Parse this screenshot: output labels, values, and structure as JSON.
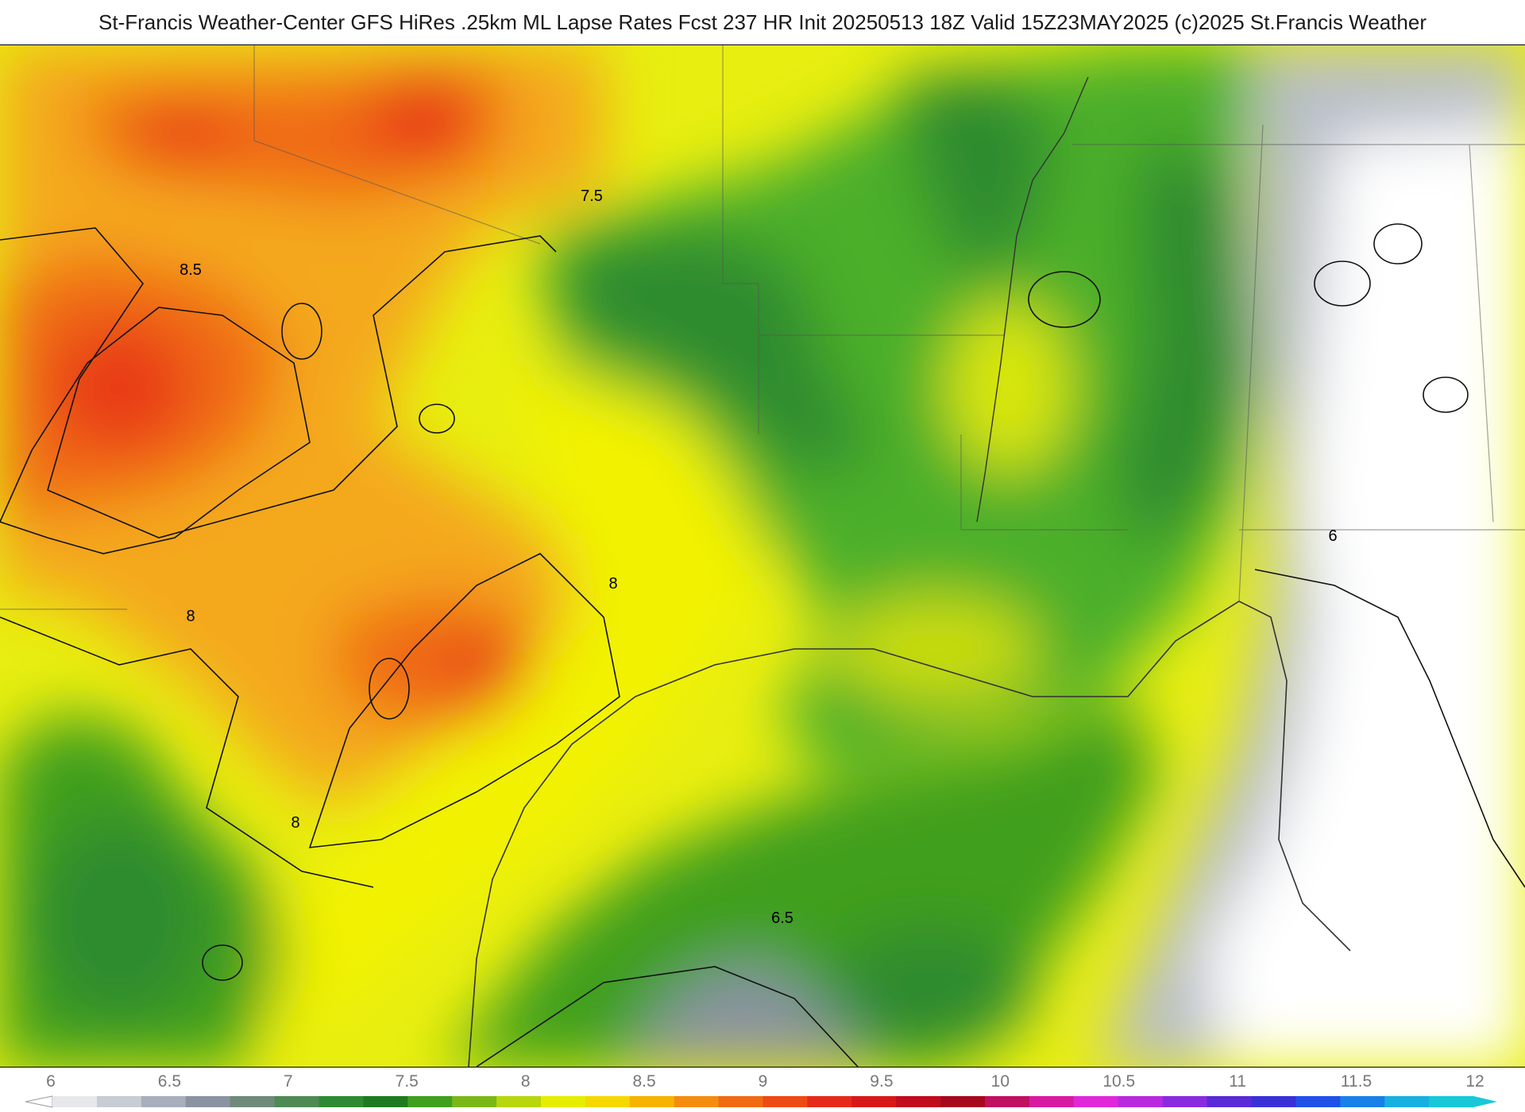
{
  "header": {
    "title": "St-Francis Weather-Center GFS HiRes .25km ML Lapse Rates  Fcst 237 HR Init 20250513 18Z  Valid 15Z23MAY2025    (c)2025 St.Francis Weather"
  },
  "map": {
    "contour_labels": [
      "7.5",
      "8.5",
      "8",
      "8",
      "8",
      "6.5",
      "6"
    ],
    "colors": {
      "water_gray": "#b8bec8",
      "white": "#ffffff",
      "green_dark": "#2e8b2e",
      "green": "#4caf2a",
      "yellow_green": "#b5d80a",
      "yellow": "#f2f200",
      "orange": "#f4a81c",
      "orange_red": "#f06a14",
      "red": "#e8401a"
    }
  },
  "colorbar": {
    "ticks": [
      "6",
      "6.5",
      "7",
      "7.5",
      "8",
      "8.5",
      "9",
      "9.5",
      "10",
      "10.5",
      "11",
      "11.5",
      "12"
    ],
    "colors": [
      "#e6e8ec",
      "#c8ccd4",
      "#a8afbb",
      "#8a93a2",
      "#6f8a7a",
      "#4f8a55",
      "#2f8a33",
      "#1f7a1f",
      "#3f9f1f",
      "#7ab817",
      "#b8d60c",
      "#e6ee00",
      "#f6d800",
      "#f6b400",
      "#f48c10",
      "#f06a14",
      "#ee4a14",
      "#e52a1a",
      "#d81818",
      "#c00c1c",
      "#a8081e",
      "#c01060",
      "#d81aa0",
      "#e028d8",
      "#b82ae0",
      "#8a2ae0",
      "#5a2ad8",
      "#3a30d8",
      "#2050e8",
      "#1880e8",
      "#18b0e0",
      "#18c8d8"
    ]
  }
}
